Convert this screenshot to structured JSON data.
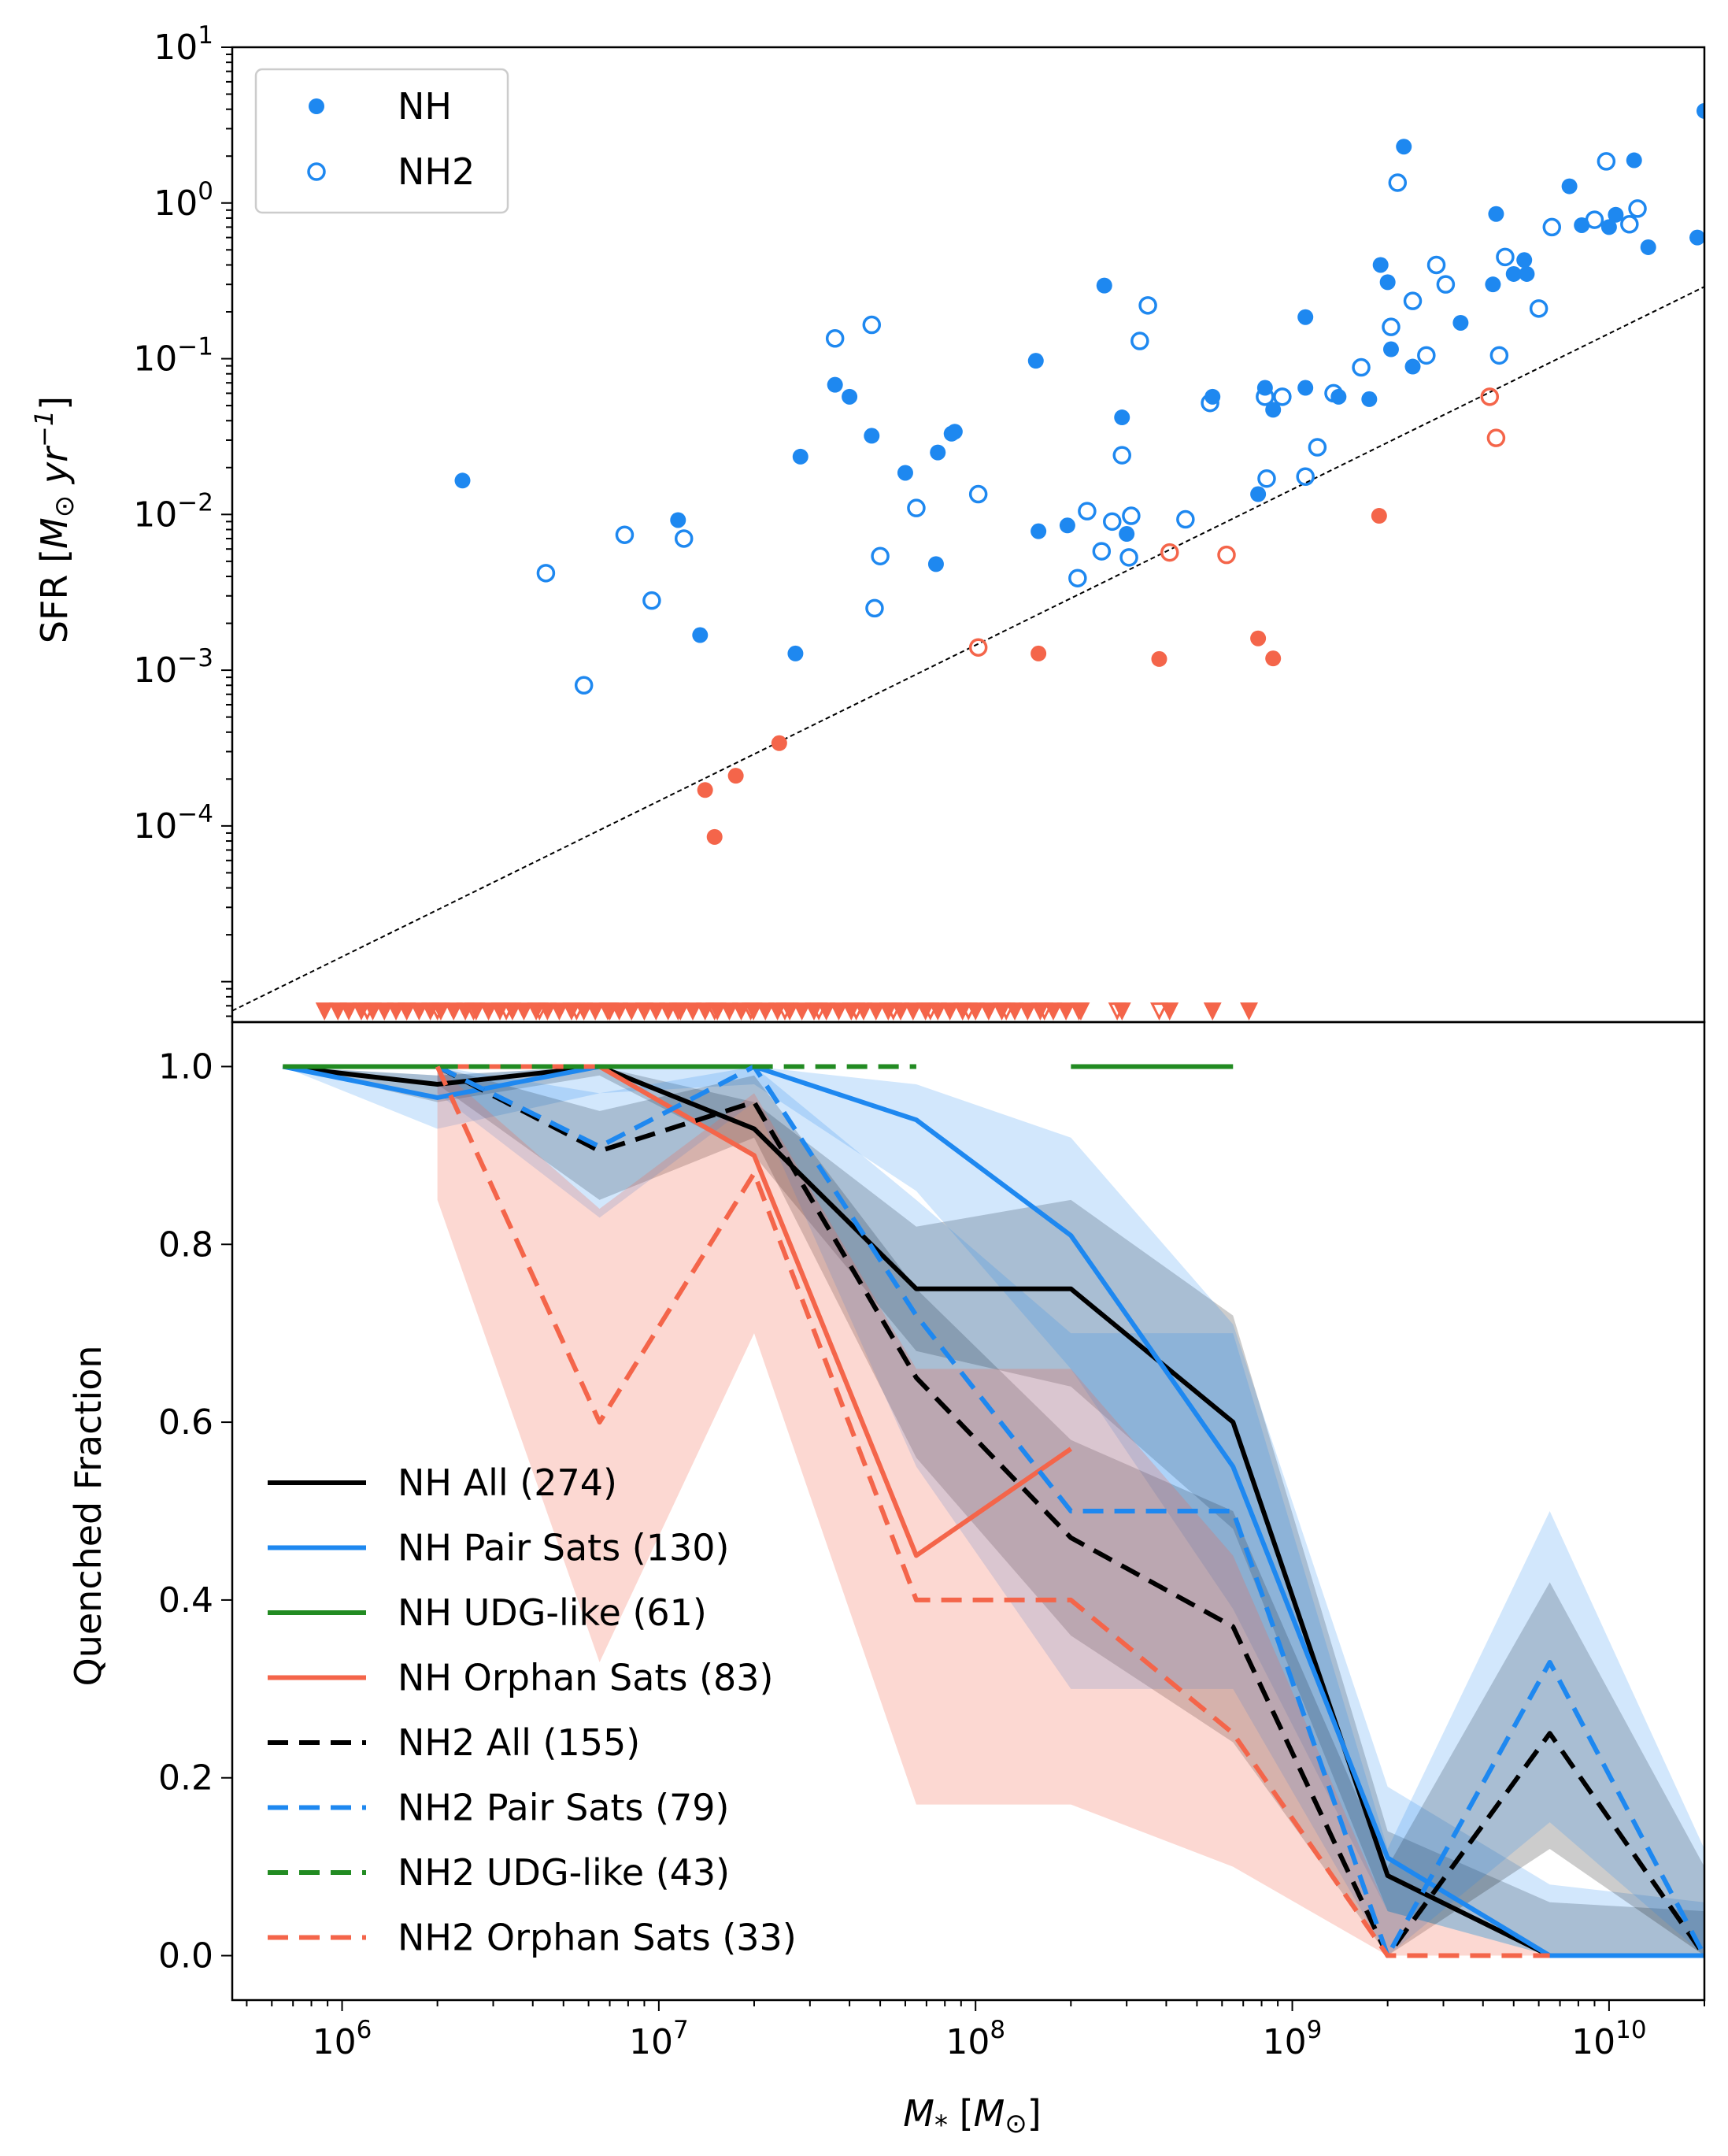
{
  "chart_data": [
    {
      "type": "scatter",
      "panel": "top",
      "ylabel": "SFR [M⊙ yr⁻¹]",
      "xscale": "log",
      "yscale": "log",
      "xlim": [
        450000,
        20000000000
      ],
      "ylim": [
        5.5e-06,
        10
      ],
      "yticks": [
        {
          "value": 0.0001,
          "base": "10",
          "exp": "−4"
        },
        {
          "value": 0.001,
          "base": "10",
          "exp": "−3"
        },
        {
          "value": 0.01,
          "base": "10",
          "exp": "−2"
        },
        {
          "value": 0.1,
          "base": "10",
          "exp": "−1"
        },
        {
          "value": 1,
          "base": "10",
          "exp": "0"
        },
        {
          "value": 10,
          "base": "10",
          "exp": "1"
        }
      ],
      "legend": {
        "placement": "upper-left",
        "entries": [
          {
            "label": "NH",
            "marker": "filled-circle"
          },
          {
            "label": "NH2",
            "marker": "open-circle"
          }
        ]
      },
      "colors": {
        "star_forming": "#1e88f0",
        "quenched": "#f4654a"
      },
      "reference_line": {
        "style": "dashed",
        "color": "#000000",
        "x": [
          450000,
          20000000000
        ],
        "y": [
          6.5e-06,
          0.29
        ]
      },
      "series": [
        {
          "name": "NH",
          "category": "star_forming",
          "marker": "filled",
          "points": [
            [
              2400000,
              0.0165
            ],
            [
              11500000,
              0.0092
            ],
            [
              13500000,
              0.00168
            ],
            [
              27000000,
              0.00128
            ],
            [
              28000000,
              0.0235
            ],
            [
              36000000,
              0.068
            ],
            [
              40000000,
              0.057
            ],
            [
              47000000,
              0.032
            ],
            [
              60000000,
              0.0185
            ],
            [
              75000000,
              0.0048
            ],
            [
              76000000,
              0.025
            ],
            [
              84000000,
              0.033
            ],
            [
              86000000,
              0.034
            ],
            [
              155000000,
              0.097
            ],
            [
              158000000,
              0.0078
            ],
            [
              195000000,
              0.0085
            ],
            [
              255000000,
              0.295
            ],
            [
              290000000,
              0.042
            ],
            [
              300000000,
              0.0075
            ],
            [
              560000000,
              0.057
            ],
            [
              780000000,
              0.0135
            ],
            [
              820000000,
              0.065
            ],
            [
              870000000,
              0.047
            ],
            [
              1100000000,
              0.185
            ],
            [
              1100000000,
              0.065
            ],
            [
              1400000000,
              0.057
            ],
            [
              1750000000,
              0.055
            ],
            [
              1900000000,
              0.4
            ],
            [
              2000000000,
              0.31
            ],
            [
              2050000000,
              0.115
            ],
            [
              2250000000,
              2.3
            ],
            [
              2400000000,
              0.089
            ],
            [
              3400000000,
              0.17
            ],
            [
              4300000000,
              0.3
            ],
            [
              4400000000,
              0.85
            ],
            [
              5000000000,
              0.35
            ],
            [
              5400000000,
              0.43
            ],
            [
              5500000000,
              0.35
            ],
            [
              7500000000,
              1.28
            ],
            [
              8200000000,
              0.72
            ],
            [
              10000000000,
              0.7
            ],
            [
              10500000000,
              0.84
            ],
            [
              12000000000,
              1.88
            ],
            [
              13300000000,
              0.52
            ],
            [
              19000000000,
              0.6
            ],
            [
              20000000000,
              3.9
            ]
          ]
        },
        {
          "name": "NH2",
          "category": "star_forming",
          "marker": "open",
          "points": [
            [
              4400000,
              0.0042
            ],
            [
              5800000,
              0.0008
            ],
            [
              7800000,
              0.0074
            ],
            [
              9500000,
              0.0028
            ],
            [
              12000000,
              0.007
            ],
            [
              36000000,
              0.135
            ],
            [
              47000000,
              0.165
            ],
            [
              48000000,
              0.0025
            ],
            [
              50000000,
              0.0054
            ],
            [
              65000000,
              0.011
            ],
            [
              102000000,
              0.0135
            ],
            [
              210000000,
              0.0039
            ],
            [
              225000000,
              0.0105
            ],
            [
              250000000,
              0.0058
            ],
            [
              270000000,
              0.009
            ],
            [
              290000000,
              0.024
            ],
            [
              305000000,
              0.0053
            ],
            [
              310000000,
              0.0098
            ],
            [
              330000000,
              0.13
            ],
            [
              350000000,
              0.22
            ],
            [
              460000000,
              0.0093
            ],
            [
              550000000,
              0.052
            ],
            [
              830000000,
              0.017
            ],
            [
              820000000,
              0.057
            ],
            [
              930000000,
              0.057
            ],
            [
              1100000000,
              0.0175
            ],
            [
              1200000000,
              0.027
            ],
            [
              1350000000,
              0.06
            ],
            [
              1650000000,
              0.088
            ],
            [
              2050000000,
              0.16
            ],
            [
              2150000000,
              1.35
            ],
            [
              2400000000,
              0.235
            ],
            [
              2650000000,
              0.105
            ],
            [
              2850000000,
              0.4
            ],
            [
              3050000000,
              0.3
            ],
            [
              4500000000,
              0.105
            ],
            [
              4700000000,
              0.45
            ],
            [
              6000000000,
              0.21
            ],
            [
              6600000000,
              0.7
            ],
            [
              9000000000,
              0.78
            ],
            [
              9800000000,
              1.85
            ],
            [
              11600000000,
              0.73
            ],
            [
              12300000000,
              0.92
            ]
          ]
        },
        {
          "name": "NH",
          "category": "quenched",
          "marker": "filled",
          "points": [
            [
              14000000,
              0.00017
            ],
            [
              15000000,
              8.5e-05
            ],
            [
              17500000,
              0.00021
            ],
            [
              24000000,
              0.00034
            ],
            [
              158000000,
              0.00128
            ],
            [
              380000000,
              0.00118
            ],
            [
              780000000,
              0.0016
            ],
            [
              870000000,
              0.00119
            ],
            [
              1880000000,
              0.0098
            ]
          ]
        },
        {
          "name": "NH2",
          "category": "quenched",
          "marker": "open",
          "points": [
            [
              102000000,
              0.0014
            ],
            [
              410000000,
              0.0057
            ],
            [
              620000000,
              0.0055
            ],
            [
              4200000000,
              0.057
            ],
            [
              4400000000,
              0.031
            ]
          ]
        }
      ],
      "upper_limits": {
        "category": "quenched",
        "y": 6.5e-06,
        "filled_x": [
          880000,
          970000,
          1050000,
          1150000,
          1250000,
          1360000,
          1480000,
          1600000,
          1750000,
          1900000,
          2050000,
          2250000,
          2450000,
          2650000,
          2900000,
          3150000,
          3450000,
          3750000,
          4100000,
          4450000,
          4850000,
          5300000,
          5800000,
          6300000,
          6900000,
          7500000,
          8200000,
          9000000,
          9800000,
          10700000,
          11700000,
          12800000,
          14000000,
          15300000,
          16700000,
          18200000,
          19900000,
          21700000,
          23700000,
          25900000,
          28300000,
          30900000,
          33800000,
          37000000,
          40500000,
          44300000,
          48500000,
          53000000,
          58000000,
          63500000,
          69500000,
          76000000,
          83000000,
          91000000,
          100000000,
          110000000,
          121000000,
          133000000,
          146000000,
          160000000,
          176000000,
          193000000,
          212000000,
          290000000,
          410000000,
          560000000,
          730000000
        ],
        "open_x": [
          1200000,
          1600000,
          2000000,
          2600000,
          3300000,
          4200000,
          5500000,
          7000000,
          9000000,
          11500000,
          15000000,
          19500000,
          25000000,
          32000000,
          42000000,
          55000000,
          72000000,
          95000000,
          125000000,
          165000000,
          215000000,
          280000000,
          380000000
        ]
      }
    },
    {
      "type": "line",
      "panel": "bottom",
      "xlabel": "M* [M⊙]",
      "ylabel": "Quenched Fraction",
      "xscale": "log",
      "xlim": [
        450000,
        20000000000
      ],
      "ylim": [
        -0.05,
        1.05
      ],
      "xticks": [
        {
          "value": 1000000,
          "base": "10",
          "exp": "6"
        },
        {
          "value": 10000000,
          "base": "10",
          "exp": "7"
        },
        {
          "value": 100000000,
          "base": "10",
          "exp": "8"
        },
        {
          "value": 1000000000,
          "base": "10",
          "exp": "9"
        },
        {
          "value": 10000000000,
          "base": "10",
          "exp": "10"
        }
      ],
      "yticks": [
        "0.0",
        "0.2",
        "0.4",
        "0.6",
        "0.8",
        "1.0"
      ],
      "legend": {
        "placement": "lower-left"
      },
      "series": [
        {
          "name": "NH All (274)",
          "color": "#000000",
          "style": "solid",
          "x": [
            650000,
            2000000,
            6500000,
            20000000,
            65000000,
            200000000,
            650000000,
            2000000000,
            6500000000,
            20000000000
          ],
          "y": [
            1.0,
            0.98,
            1.0,
            0.93,
            0.75,
            0.75,
            0.6,
            0.09,
            0.0,
            0.0
          ],
          "band_lo": [
            1.0,
            0.96,
            0.99,
            0.9,
            0.68,
            0.64,
            0.48,
            0.05,
            0.0,
            0.0
          ],
          "band_hi": [
            1.0,
            0.99,
            1.0,
            0.96,
            0.82,
            0.85,
            0.72,
            0.14,
            0.06,
            0.05
          ]
        },
        {
          "name": "NH Pair Sats (130)",
          "color": "#1e88f0",
          "style": "solid",
          "x": [
            650000,
            2000000,
            6500000,
            20000000,
            65000000,
            200000000,
            650000000,
            2000000000,
            6500000000,
            20000000000
          ],
          "y": [
            1.0,
            0.965,
            1.0,
            1.0,
            0.94,
            0.81,
            0.55,
            0.11,
            0.0,
            0.0
          ],
          "band_lo": [
            1.0,
            0.93,
            0.97,
            0.98,
            0.86,
            0.66,
            0.39,
            0.05,
            0.0,
            0.0
          ],
          "band_hi": [
            1.0,
            0.99,
            1.0,
            1.0,
            0.98,
            0.92,
            0.71,
            0.19,
            0.08,
            0.06
          ]
        },
        {
          "name": "NH UDG-like (61)",
          "color": "#228b22",
          "style": "solid",
          "x": [
            650000,
            2000000,
            6500000,
            20000000,
            65000000,
            200000000,
            650000000
          ],
          "y": [
            1.0,
            1.0,
            1.0,
            1.0,
            null,
            1.0,
            1.0
          ]
        },
        {
          "name": "NH Orphan Sats (83)",
          "color": "#f4654a",
          "style": "solid",
          "x": [
            2000000,
            6500000,
            20000000,
            65000000,
            200000000
          ],
          "y": [
            1.0,
            1.0,
            0.9,
            0.45,
            0.57
          ]
        },
        {
          "name": "NH2 All (155)",
          "color": "#000000",
          "style": "dashed",
          "x": [
            2000000,
            6500000,
            20000000,
            65000000,
            200000000,
            650000000,
            2000000000,
            6500000000,
            20000000000
          ],
          "y": [
            1.0,
            0.905,
            0.96,
            0.65,
            0.47,
            0.37,
            0.0,
            0.25,
            0.0
          ],
          "band_lo": [
            0.98,
            0.85,
            0.92,
            0.56,
            0.36,
            0.24,
            0.0,
            0.12,
            0.0
          ],
          "band_hi": [
            1.0,
            0.95,
            0.99,
            0.75,
            0.58,
            0.5,
            0.1,
            0.42,
            0.1
          ]
        },
        {
          "name": "NH2 Pair Sats (79)",
          "color": "#1e88f0",
          "style": "dashed",
          "x": [
            2000000,
            6500000,
            20000000,
            65000000,
            200000000,
            650000000,
            2000000000,
            6500000000,
            20000000000
          ],
          "y": [
            1.0,
            0.91,
            1.0,
            0.72,
            0.5,
            0.5,
            0.0,
            0.33,
            0.0
          ],
          "band_lo": [
            0.97,
            0.83,
            0.96,
            0.55,
            0.3,
            0.3,
            0.0,
            0.15,
            0.0
          ],
          "band_hi": [
            1.0,
            0.97,
            1.0,
            0.85,
            0.7,
            0.7,
            0.12,
            0.5,
            0.12
          ]
        },
        {
          "name": "NH2 UDG-like (43)",
          "color": "#228b22",
          "style": "dashed",
          "x": [
            2000000,
            6500000,
            20000000,
            65000000
          ],
          "y": [
            1.0,
            1.0,
            1.0,
            1.0
          ]
        },
        {
          "name": "NH2 Orphan Sats (33)",
          "color": "#f4654a",
          "style": "dashed",
          "x": [
            2000000,
            6500000,
            20000000,
            65000000,
            200000000,
            650000000,
            2000000000,
            6500000000
          ],
          "y": [
            1.0,
            0.6,
            0.88,
            0.4,
            0.4,
            0.25,
            0.0,
            0.0
          ],
          "band_lo": [
            0.85,
            0.33,
            0.7,
            0.17,
            0.17,
            0.1,
            0.0,
            0.0
          ],
          "band_hi": [
            1.0,
            0.84,
            0.97,
            0.66,
            0.66,
            0.45,
            0.05,
            0.0
          ]
        }
      ]
    }
  ]
}
